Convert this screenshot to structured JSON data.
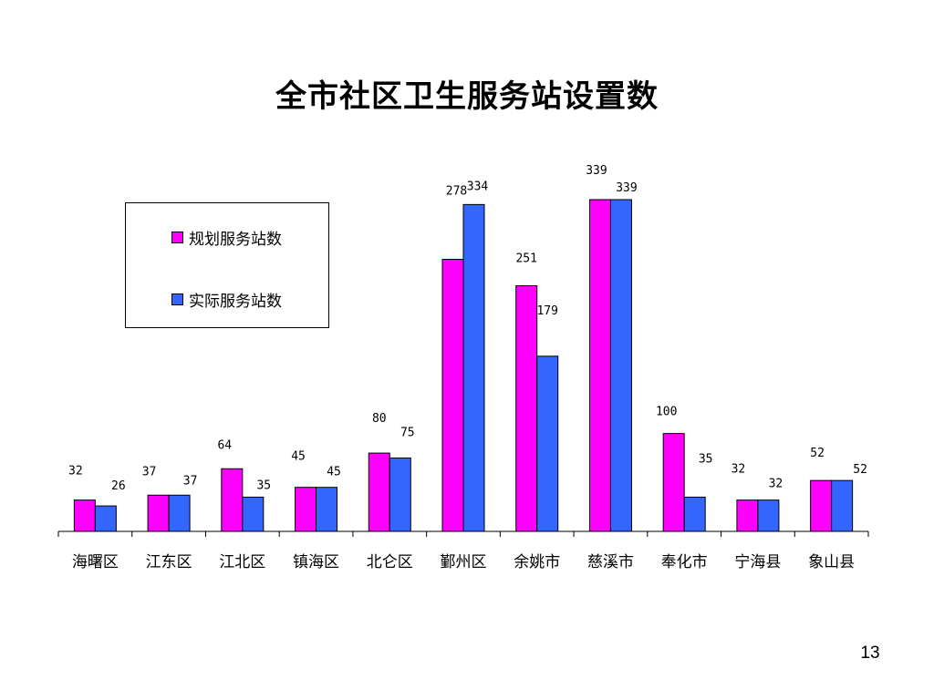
{
  "page": {
    "title": "全市社区卫生服务站设置数",
    "page_number": "13"
  },
  "legend": {
    "items": [
      "规划服务站数",
      "实际服务站数"
    ]
  },
  "colors": {
    "planned": "#ff00ff",
    "actual": "#3366ff",
    "axis": "#000000"
  },
  "chart_data": {
    "type": "bar",
    "title": "全市社区卫生服务站设置数",
    "xlabel": "",
    "ylabel": "",
    "ylim": [
      0,
      350
    ],
    "grid": false,
    "legend_position": "top-left",
    "categories": [
      "海曙区",
      "江东区",
      "江北区",
      "镇海区",
      "北仑区",
      "鄞州区",
      "余姚市",
      "慈溪市",
      "奉化市",
      "宁海县",
      "象山县"
    ],
    "series": [
      {
        "name": "规划服务站数",
        "values": [
          32,
          37,
          64,
          45,
          80,
          278,
          251,
          339,
          100,
          32,
          52
        ]
      },
      {
        "name": "实际服务站数",
        "values": [
          26,
          37,
          35,
          45,
          75,
          334,
          179,
          339,
          35,
          32,
          52
        ]
      }
    ]
  }
}
